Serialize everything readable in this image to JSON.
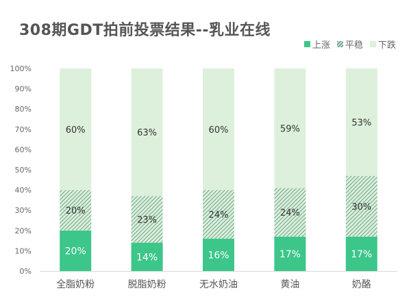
{
  "title": "308期GDT拍前投票结果--乳业在线",
  "legend": [
    {
      "key": "up",
      "label": "上涨"
    },
    {
      "key": "flat",
      "label": "平稳"
    },
    {
      "key": "down",
      "label": "下跌"
    }
  ],
  "colors": {
    "up": "#3cc68a",
    "flat_line": "#4e8f80",
    "flat_bg": "#dcefd9",
    "down": "#ddf0db"
  },
  "chart_data": {
    "type": "bar",
    "stacked": true,
    "title": "308期GDT拍前投票结果--乳业在线",
    "categories": [
      "全脂奶粉",
      "脱脂奶粉",
      "无水奶油",
      "黄油",
      "奶酪"
    ],
    "series": [
      {
        "name": "上涨",
        "values": [
          20,
          14,
          16,
          17,
          17
        ],
        "labels": [
          "20%",
          "14%",
          "16%",
          "17%",
          "17%"
        ]
      },
      {
        "name": "平稳",
        "values": [
          20,
          23,
          24,
          24,
          30
        ],
        "labels": [
          "20%",
          "23%",
          "24%",
          "24%",
          "30%"
        ]
      },
      {
        "name": "下跌",
        "values": [
          60,
          63,
          60,
          59,
          53
        ],
        "labels": [
          "60%",
          "63%",
          "60%",
          "59%",
          "53%"
        ]
      }
    ],
    "ylim": [
      0,
      100
    ],
    "yticks": [
      "0%",
      "10%",
      "20%",
      "30%",
      "40%",
      "50%",
      "60%",
      "70%",
      "80%",
      "90%",
      "100%"
    ],
    "legend_position": "top-right",
    "xlabel": "",
    "ylabel": ""
  }
}
